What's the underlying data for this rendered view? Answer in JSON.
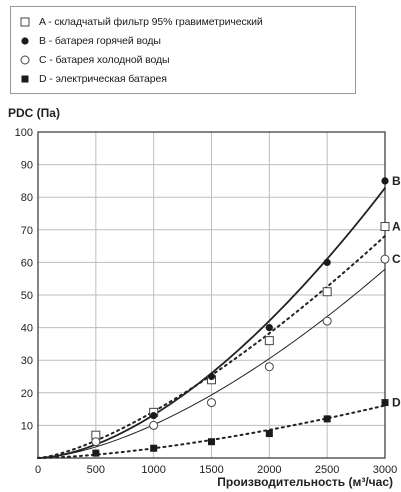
{
  "chart_data": {
    "type": "line",
    "ylabel": "PDC (Па)",
    "xlabel": "Производительность (м³/час)",
    "xlim": [
      0,
      3000
    ],
    "ylim": [
      0,
      100
    ],
    "xticks": [
      0,
      500,
      1000,
      1500,
      2000,
      2500,
      3000
    ],
    "yticks": [
      10,
      20,
      30,
      40,
      50,
      60,
      70,
      80,
      90,
      100
    ],
    "grid": true,
    "legend_position": "top-left",
    "series": [
      {
        "key": "A",
        "name": "A - складчатый фильтр 95% гравиметрический",
        "end_label": "A",
        "marker": "open-square",
        "line": "dotted",
        "x": [
          500,
          1000,
          1500,
          2000,
          2500,
          3000
        ],
        "y": [
          7,
          14,
          24,
          36,
          51,
          71
        ]
      },
      {
        "key": "B",
        "name": "B - батарея горячей воды",
        "end_label": "B",
        "marker": "filled-circle",
        "line": "solid-thick",
        "x": [
          500,
          1000,
          1500,
          2000,
          2500,
          3000
        ],
        "y": [
          5,
          13,
          25,
          40,
          60,
          85
        ]
      },
      {
        "key": "C",
        "name": "C - батарея холодной воды",
        "end_label": "C",
        "marker": "open-circle",
        "line": "solid-thin",
        "x": [
          500,
          1000,
          1500,
          2000,
          2500,
          3000
        ],
        "y": [
          5,
          10,
          17,
          28,
          42,
          61
        ]
      },
      {
        "key": "D",
        "name": "D - электрическая батарея",
        "end_label": "D",
        "marker": "filled-square",
        "line": "dotted",
        "x": [
          500,
          1000,
          1500,
          2000,
          2500,
          3000
        ],
        "y": [
          1.5,
          3,
          5,
          7.5,
          12,
          17
        ]
      }
    ]
  }
}
